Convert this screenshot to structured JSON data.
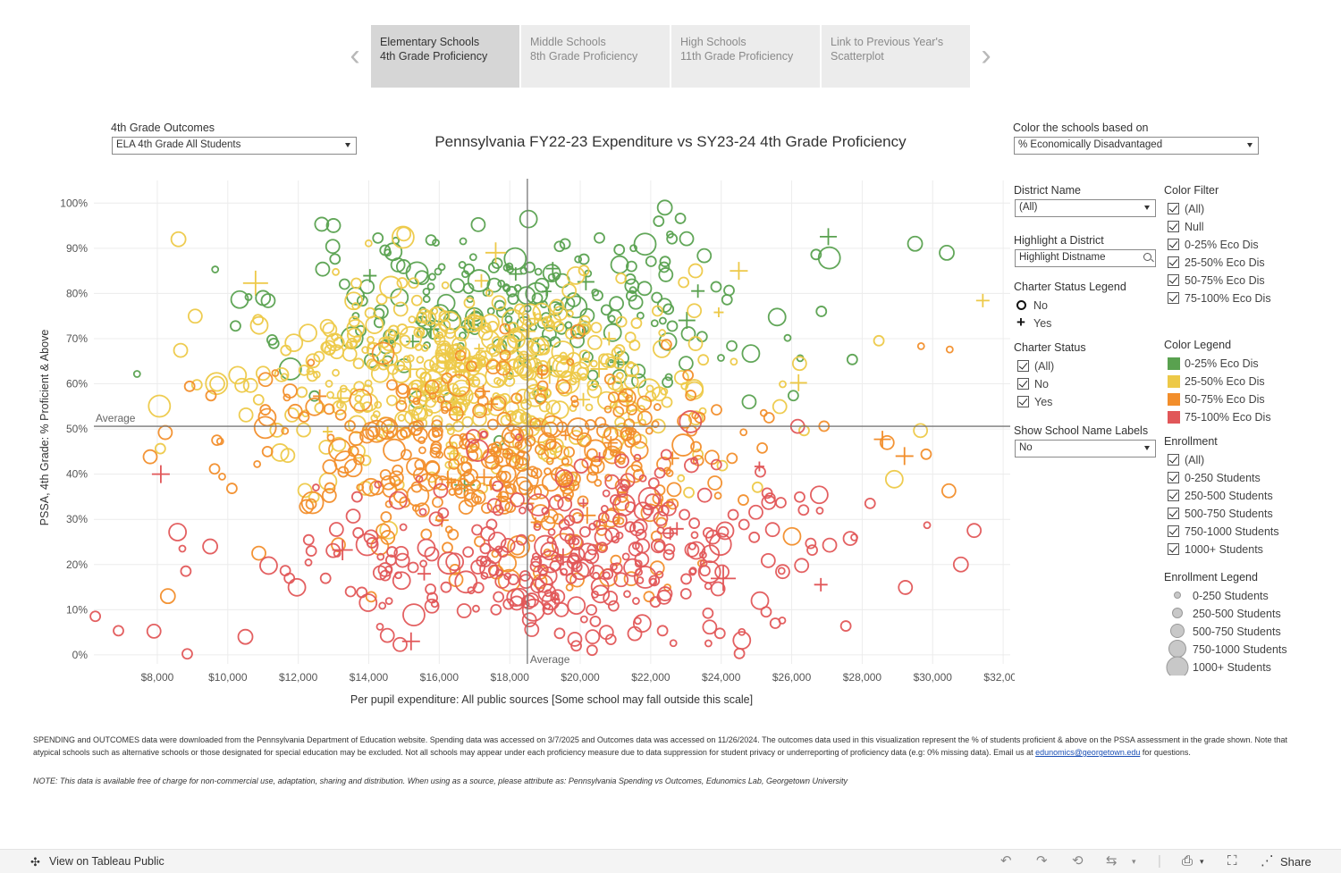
{
  "nav": {
    "tabs": [
      {
        "line1": "Elementary Schools",
        "line2": "4th Grade Proficiency"
      },
      {
        "line1": "Middle Schools",
        "line2": "8th Grade Proficiency"
      },
      {
        "line1": "High Schools",
        "line2": "11th Grade Proficiency"
      },
      {
        "line1": "Link to Previous Year's",
        "line2": "Scatterplot"
      }
    ],
    "prev_arrow": "‹",
    "next_arrow": "›"
  },
  "controls": {
    "outcomes_label": "4th Grade Outcomes",
    "outcomes_value": "ELA 4th Grade All Students",
    "color_label": "Color the schools based on",
    "color_value": "% Economically Disadvantaged"
  },
  "sidebar": {
    "district_label": "District Name",
    "district_value": "(All)",
    "highlight_label": "Highlight a District",
    "highlight_placeholder": "Highlight Distname",
    "charter_legend_label": "Charter Status Legend",
    "charter_legend": [
      "No",
      "Yes"
    ],
    "charter_status_label": "Charter Status",
    "charter_status": [
      "(All)",
      "No",
      "Yes"
    ],
    "labels_label": "Show School Name Labels",
    "labels_value": "No",
    "color_filter_label": "Color Filter",
    "color_filter": [
      "(All)",
      "Null",
      "0-25% Eco Dis",
      "25-50% Eco Dis",
      "50-75% Eco Dis",
      "75-100% Eco Dis"
    ],
    "color_legend_label": "Color Legend",
    "color_legend": [
      {
        "label": "0-25% Eco Dis",
        "color": "#59a14f"
      },
      {
        "label": "25-50% Eco Dis",
        "color": "#edc948"
      },
      {
        "label": "50-75% Eco Dis",
        "color": "#f28e2b"
      },
      {
        "label": "75-100% Eco Dis",
        "color": "#e15759"
      }
    ],
    "enrollment_label": "Enrollment",
    "enrollment": [
      "(All)",
      "0-250 Students",
      "250-500 Students",
      "500-750 Students",
      "750-1000 Students",
      "1000+ Students"
    ],
    "enrollment_legend_label": "Enrollment Legend",
    "enrollment_legend": [
      "0-250 Students",
      "250-500 Students",
      "500-750 Students",
      "750-1000 Students",
      "1000+ Students"
    ]
  },
  "chart_data": {
    "type": "scatter",
    "title": "Pennsylvania FY22-23 Expenditure vs SY23-24 4th Grade Proficiency",
    "xlabel": "Per pupil expenditure: All public sources [Some school may fall outside this scale]",
    "ylabel": "PSSA, 4th Grade: % Proficient & Above",
    "xlim": [
      6200,
      32200
    ],
    "ylim": [
      -2,
      105
    ],
    "x_ticks": [
      8000,
      10000,
      12000,
      14000,
      16000,
      18000,
      20000,
      22000,
      24000,
      26000,
      28000,
      30000,
      32000
    ],
    "x_tick_labels": [
      "$8,000",
      "$10,000",
      "$12,000",
      "$14,000",
      "$16,000",
      "$18,000",
      "$20,000",
      "$22,000",
      "$24,000",
      "$26,000",
      "$28,000",
      "$30,000",
      "$32,000"
    ],
    "y_ticks": [
      0,
      10,
      20,
      30,
      40,
      50,
      60,
      70,
      80,
      90,
      100
    ],
    "y_tick_labels": [
      "0%",
      "10%",
      "20%",
      "30%",
      "40%",
      "50%",
      "60%",
      "70%",
      "80%",
      "90%",
      "100%"
    ],
    "reference_lines": {
      "x_avg": 18500,
      "y_avg": 50.6,
      "label": "Average"
    },
    "series": [
      {
        "name": "0-25% Eco Dis",
        "color": "#59a14f",
        "center_x": 19200,
        "spread_x": 3200,
        "center_y": 78,
        "spread_y": 10,
        "count": 230
      },
      {
        "name": "25-50% Eco Dis",
        "color": "#edc948",
        "center_x": 17000,
        "spread_x": 3000,
        "center_y": 62,
        "spread_y": 11,
        "count": 480
      },
      {
        "name": "50-75% Eco Dis",
        "color": "#f28e2b",
        "center_x": 17800,
        "spread_x": 3200,
        "center_y": 42,
        "spread_y": 11,
        "count": 380
      },
      {
        "name": "75-100% Eco Dis",
        "color": "#e15759",
        "center_x": 19800,
        "spread_x": 3500,
        "center_y": 22,
        "spread_y": 11,
        "count": 340
      }
    ],
    "highlighted_points": [
      {
        "x": 8100,
        "y": 40,
        "series": "75-100% Eco Dis",
        "charter": "Yes"
      },
      {
        "x": 8600,
        "y": 92,
        "series": "25-50% Eco Dis",
        "charter": "No"
      },
      {
        "x": 9500,
        "y": 24,
        "series": "75-100% Eco Dis",
        "charter": "No"
      },
      {
        "x": 9700,
        "y": 60,
        "series": "25-50% Eco Dis",
        "charter": "No"
      },
      {
        "x": 11000,
        "y": 79,
        "series": "0-25% Eco Dis",
        "charter": "No"
      },
      {
        "x": 22400,
        "y": 99,
        "series": "0-25% Eco Dis",
        "charter": "No"
      },
      {
        "x": 24500,
        "y": 85,
        "series": "25-50% Eco Dis",
        "charter": "Yes"
      },
      {
        "x": 29500,
        "y": 91,
        "series": "0-25% Eco Dis",
        "charter": "No"
      },
      {
        "x": 30400,
        "y": 89,
        "series": "0-25% Eco Dis",
        "charter": "No"
      },
      {
        "x": 29200,
        "y": 44,
        "series": "50-75% Eco Dis",
        "charter": "Yes"
      },
      {
        "x": 30800,
        "y": 20,
        "series": "75-100% Eco Dis",
        "charter": "No"
      },
      {
        "x": 8300,
        "y": 13,
        "series": "50-75% Eco Dis",
        "charter": "No"
      },
      {
        "x": 10500,
        "y": 4,
        "series": "75-100% Eco Dis",
        "charter": "No"
      },
      {
        "x": 15200,
        "y": 3,
        "series": "75-100% Eco Dis",
        "charter": "Yes"
      }
    ]
  },
  "notes": {
    "main": "SPENDING and OUTCOMES data were downloaded from the Pennsylvania Department of Education website. Spending data was accessed on 3/7/2025 and Outcomes data was accessed on 11/26/2024. The outcomes data used in this visualization represent the % of students proficient & above on the PSSA assessment in the grade shown. Note that atypical schools such as alternative schools or those designated for special education may be excluded. Not all schools may appear under each proficiency measure due to data suppression for student privacy or underreporting of proficiency data (e.g: 0% missing data). Email us at",
    "email": "edunomics@georgetown.edu",
    "main_end": "for questions.",
    "disclaimer": "NOTE: This data is available free of charge for non-commercial use, adaptation, sharing and distribution. When using as a source, please attribute as: Pennsylvania Spending vs Outcomes, Edunomics Lab, Georgetown University"
  },
  "footer": {
    "view_label": "View on Tableau Public",
    "share_label": "Share"
  }
}
